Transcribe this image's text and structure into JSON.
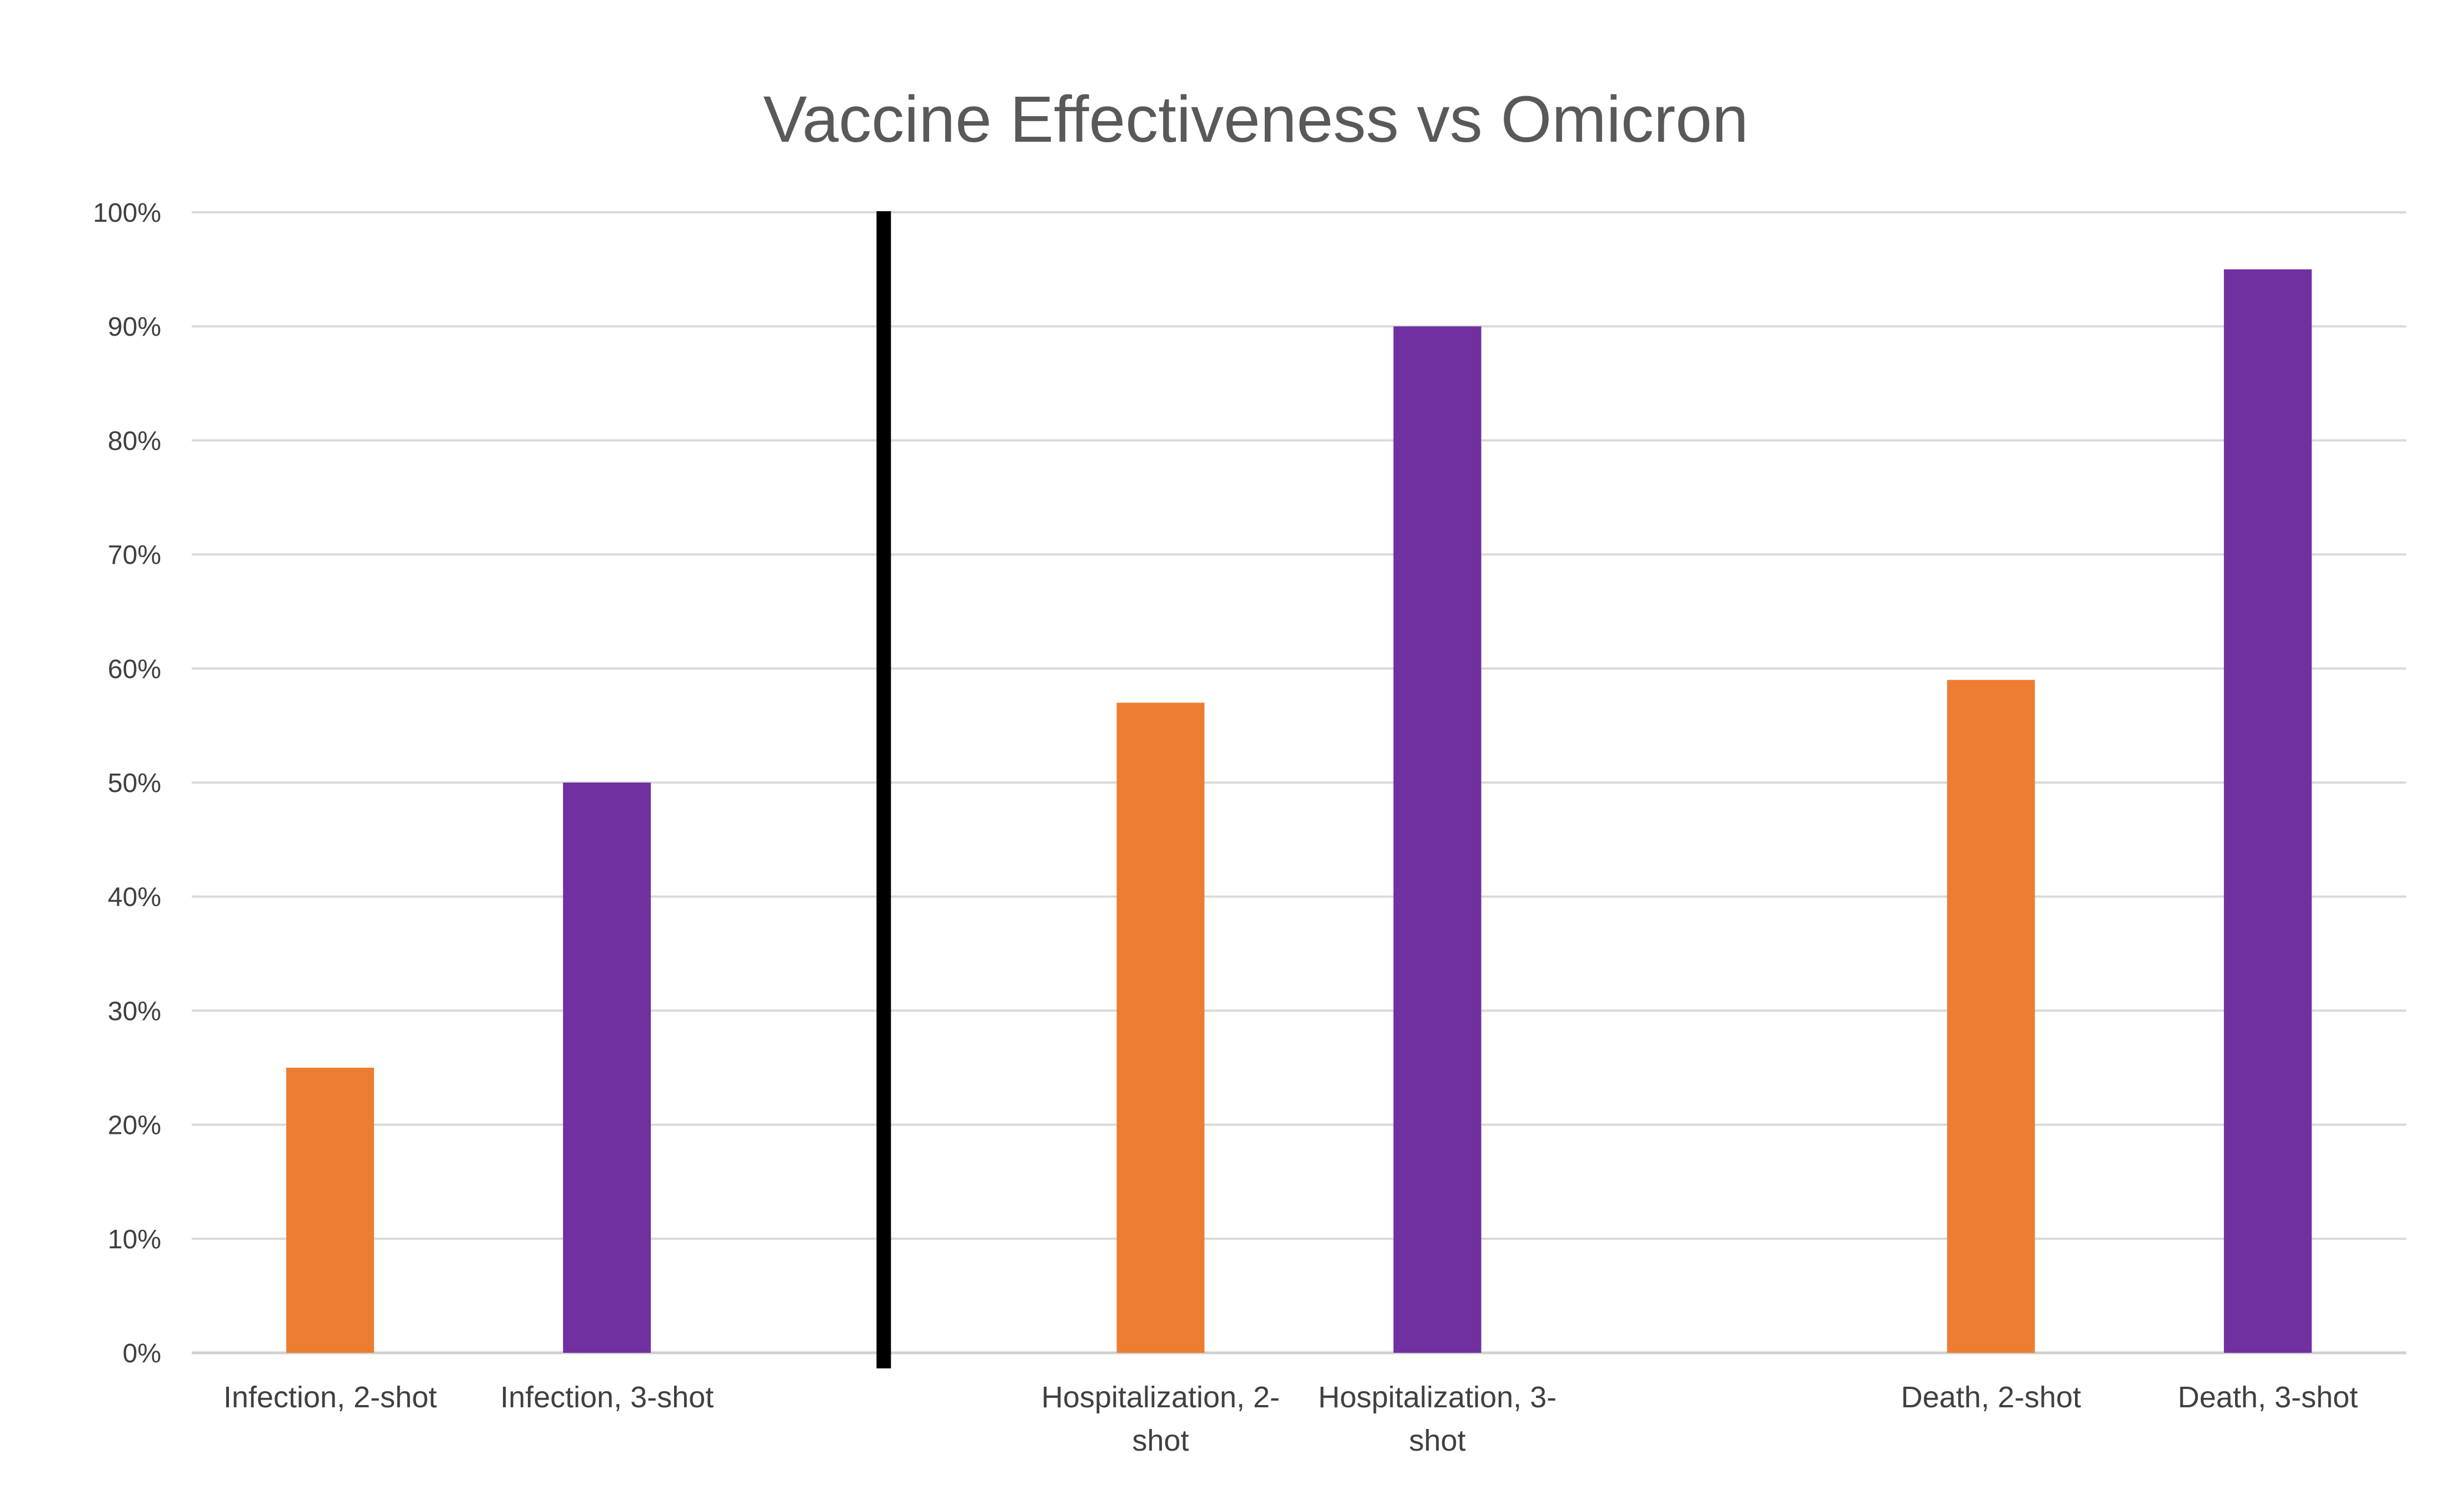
{
  "chart_data": {
    "type": "bar",
    "title": "Vaccine Effectiveness vs Omicron",
    "xlabel": "",
    "ylabel": "",
    "ylim": [
      0,
      100
    ],
    "yticks": [
      "0%",
      "10%",
      "20%",
      "30%",
      "40%",
      "50%",
      "60%",
      "70%",
      "80%",
      "90%",
      "100%"
    ],
    "grid": true,
    "legend": "none",
    "categories": [
      [
        "Infection, 2-shot"
      ],
      [
        "Infection, 3-shot"
      ],
      [
        ""
      ],
      [
        "Hospitalization, 2-",
        "shot"
      ],
      [
        "Hospitalization, 3-",
        "shot"
      ],
      [
        ""
      ],
      [
        "Death, 2-shot"
      ],
      [
        "Death, 3-shot"
      ]
    ],
    "values": [
      25,
      50,
      null,
      57,
      90,
      null,
      59,
      95
    ],
    "colors": [
      "#ED7D31",
      "#7030A0",
      "",
      "#ED7D31",
      "#7030A0",
      "",
      "#ED7D31",
      "#7030A0"
    ],
    "divider_after_index": 2
  }
}
